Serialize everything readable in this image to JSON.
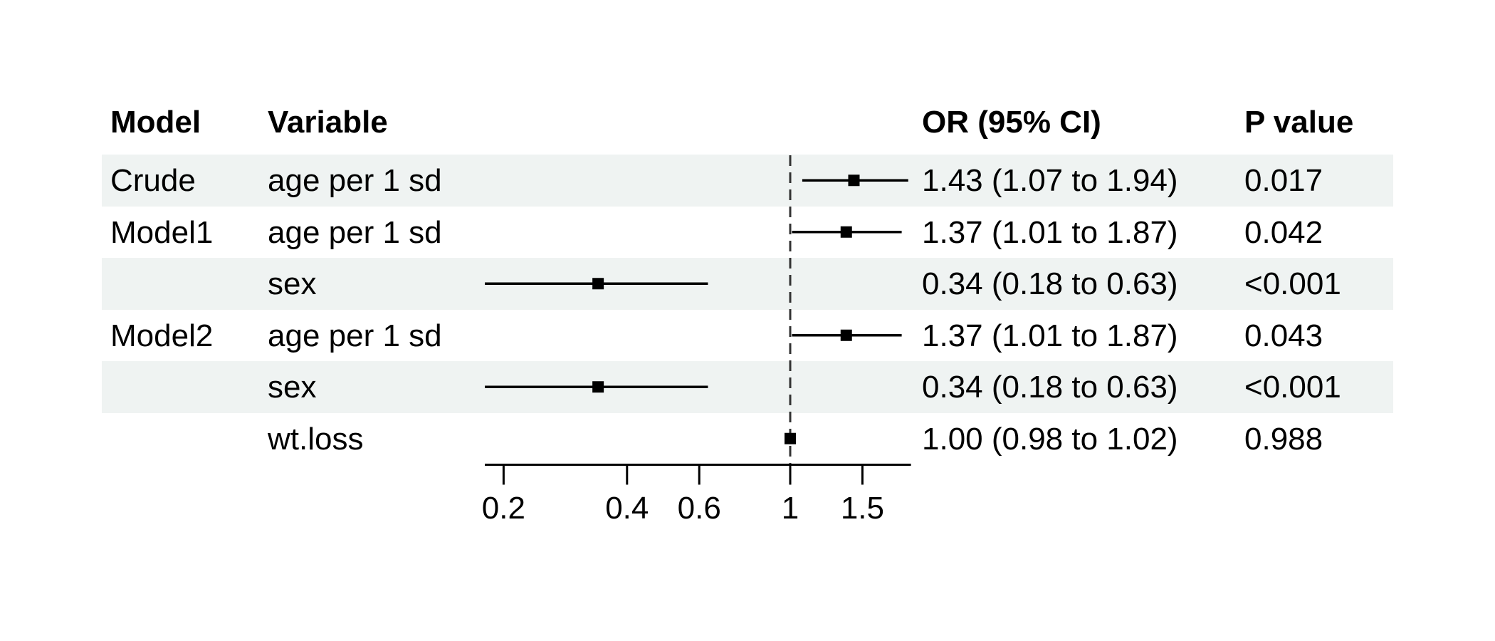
{
  "table": {
    "headers": {
      "model": "Model",
      "variable": "Variable",
      "or": "OR (95% CI)",
      "p": "P value"
    }
  },
  "chart_data": {
    "type": "forest",
    "title": "",
    "x_scale": "log10",
    "x_tick_labels": [
      "0.2",
      "0.4",
      "0.6",
      "1",
      "1.5"
    ],
    "x_tick_values": [
      0.2,
      0.4,
      0.6,
      1,
      1.5
    ],
    "x_range": [
      0.18,
      1.97
    ],
    "reference_line": 1,
    "marker": "square",
    "legend": "none",
    "grid": "off",
    "colors": {
      "band": "#eff3f2",
      "marker": "#000000",
      "ci_line": "#000000",
      "axis": "#000000",
      "ref_line": "#333333",
      "text": "#000000",
      "background": "#ffffff"
    },
    "rows": [
      {
        "model": "Crude",
        "variable": "age per 1 sd",
        "est": 1.43,
        "lo": 1.07,
        "hi": 1.94,
        "or_ci": "1.43 (1.07 to 1.94)",
        "p": "0.017",
        "shaded": true
      },
      {
        "model": "Model1",
        "variable": "age per 1 sd",
        "est": 1.37,
        "lo": 1.01,
        "hi": 1.87,
        "or_ci": "1.37 (1.01 to 1.87)",
        "p": "0.042",
        "shaded": false
      },
      {
        "model": "",
        "variable": "sex",
        "est": 0.34,
        "lo": 0.18,
        "hi": 0.63,
        "or_ci": "0.34 (0.18 to 0.63)",
        "p": "<0.001",
        "shaded": true
      },
      {
        "model": "Model2",
        "variable": "age per 1 sd",
        "est": 1.37,
        "lo": 1.01,
        "hi": 1.87,
        "or_ci": "1.37 (1.01 to 1.87)",
        "p": "0.043",
        "shaded": false
      },
      {
        "model": "",
        "variable": "sex",
        "est": 0.34,
        "lo": 0.18,
        "hi": 0.63,
        "or_ci": "0.34 (0.18 to 0.63)",
        "p": "<0.001",
        "shaded": true
      },
      {
        "model": "",
        "variable": "wt.loss",
        "est": 1.0,
        "lo": 0.98,
        "hi": 1.02,
        "or_ci": "1.00 (0.98 to 1.02)",
        "p": "0.988",
        "shaded": false
      }
    ]
  }
}
